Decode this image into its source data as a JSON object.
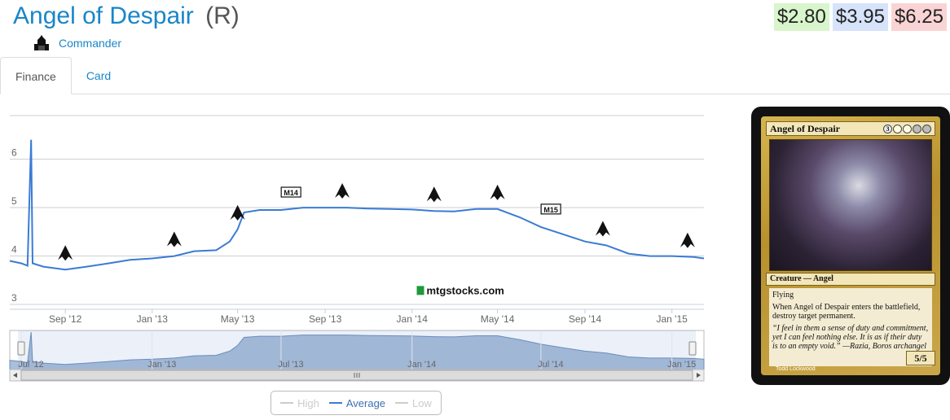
{
  "card": {
    "name": "Angel of Despair",
    "rarity": "(R)",
    "set": "Commander",
    "set_icon": "commander-set-icon"
  },
  "prices": {
    "low": "$2.80",
    "average": "$3.95",
    "high": "$6.25",
    "colors": {
      "low": "#d8f5cc",
      "average": "#d6e3fb",
      "high": "#fad4d4"
    }
  },
  "tabs": [
    {
      "label": "Finance",
      "active": true
    },
    {
      "label": "Card",
      "active": false
    }
  ],
  "chart_data": {
    "type": "line",
    "ylim": [
      2.9,
      6.9
    ],
    "yticks": [
      "3",
      "4",
      "5",
      "6"
    ],
    "xticks": [
      "Sep '12",
      "Jan '13",
      "May '13",
      "Sep '13",
      "Jan '14",
      "May '14",
      "Sep '14",
      "Jan '15"
    ],
    "watermark": "mtgstocks.com",
    "grid": true,
    "series": [
      {
        "name": "Average",
        "color": "#3a7bd5",
        "points": [
          [
            "2012-06-15",
            3.9
          ],
          [
            "2012-07-01",
            3.85
          ],
          [
            "2012-07-10",
            3.8
          ],
          [
            "2012-07-15",
            6.4
          ],
          [
            "2012-07-17",
            3.85
          ],
          [
            "2012-08-01",
            3.78
          ],
          [
            "2012-09-01",
            3.72
          ],
          [
            "2012-10-01",
            3.78
          ],
          [
            "2012-11-01",
            3.85
          ],
          [
            "2012-12-01",
            3.92
          ],
          [
            "2013-01-01",
            3.95
          ],
          [
            "2013-02-01",
            4.0
          ],
          [
            "2013-03-01",
            4.1
          ],
          [
            "2013-04-01",
            4.12
          ],
          [
            "2013-04-20",
            4.3
          ],
          [
            "2013-05-01",
            4.55
          ],
          [
            "2013-05-10",
            4.9
          ],
          [
            "2013-06-01",
            4.95
          ],
          [
            "2013-07-01",
            4.95
          ],
          [
            "2013-08-01",
            5.0
          ],
          [
            "2013-09-01",
            5.0
          ],
          [
            "2013-10-01",
            5.0
          ],
          [
            "2013-11-01",
            4.98
          ],
          [
            "2013-12-01",
            4.97
          ],
          [
            "2014-01-01",
            4.96
          ],
          [
            "2014-02-01",
            4.93
          ],
          [
            "2014-03-01",
            4.92
          ],
          [
            "2014-04-01",
            4.97
          ],
          [
            "2014-05-01",
            4.97
          ],
          [
            "2014-06-01",
            4.8
          ],
          [
            "2014-07-01",
            4.6
          ],
          [
            "2014-08-01",
            4.45
          ],
          [
            "2014-09-01",
            4.3
          ],
          [
            "2014-10-01",
            4.22
          ],
          [
            "2014-11-01",
            4.05
          ],
          [
            "2014-12-01",
            4.0
          ],
          [
            "2015-01-01",
            4.0
          ],
          [
            "2015-02-01",
            3.98
          ],
          [
            "2015-02-15",
            3.95
          ]
        ]
      }
    ],
    "events": [
      {
        "date": "2012-09-01",
        "icon": "set-symbol-rtr-icon"
      },
      {
        "date": "2013-02-01",
        "icon": "set-symbol-gtc-icon"
      },
      {
        "date": "2013-05-01",
        "icon": "set-symbol-dgm-icon"
      },
      {
        "date": "2013-07-15",
        "icon": "set-symbol-m14-icon",
        "label": "M14"
      },
      {
        "date": "2013-09-25",
        "icon": "set-symbol-ths-icon"
      },
      {
        "date": "2014-02-01",
        "icon": "set-symbol-bng-icon"
      },
      {
        "date": "2014-05-01",
        "icon": "set-symbol-jou-icon"
      },
      {
        "date": "2014-07-15",
        "icon": "set-symbol-m15-icon",
        "label": "M15"
      },
      {
        "date": "2014-09-26",
        "icon": "set-symbol-ktk-icon"
      },
      {
        "date": "2015-01-23",
        "icon": "set-symbol-frf-icon"
      }
    ],
    "navigator_xticks": [
      "Jul '12",
      "Jan '13",
      "Jul '13",
      "Jan '14",
      "Jul '14",
      "Jan '15"
    ]
  },
  "legend": [
    {
      "name": "High",
      "active": false
    },
    {
      "name": "Average",
      "active": true
    },
    {
      "name": "Low",
      "active": false
    }
  ],
  "card_image": {
    "name": "Angel of Despair",
    "mana_cost": [
      "3",
      "W",
      "W",
      "B",
      "B"
    ],
    "type_line": "Creature — Angel",
    "rules_text": [
      "Flying",
      "When Angel of Despair enters the battlefield, destroy target permanent."
    ],
    "flavor_text": "“I feel in them a sense of duty and commitment, yet I can feel nothing else. It is as if their duty is to an empty void.” —Razia, Boros archangel",
    "pt": "5/5",
    "artist": "Todd Lockwood"
  }
}
